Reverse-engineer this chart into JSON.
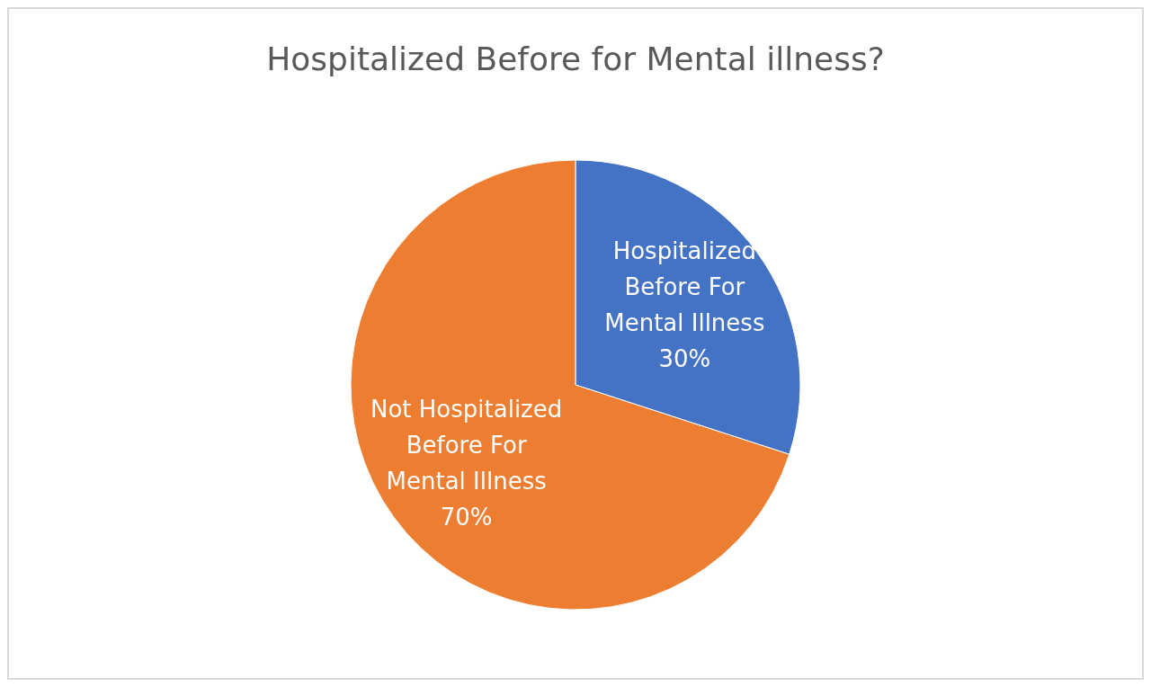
{
  "chart_data": {
    "type": "pie",
    "title": "Hospitalized Before for Mental illness?",
    "categories": [
      "Hospitalized Before For Mental Illness",
      "Not Hospitalized Before For Mental Illness"
    ],
    "values": [
      30,
      70
    ],
    "colors": [
      "#4472c4",
      "#ed7d31"
    ],
    "value_labels": [
      "30%",
      "70%"
    ],
    "legend": false
  }
}
